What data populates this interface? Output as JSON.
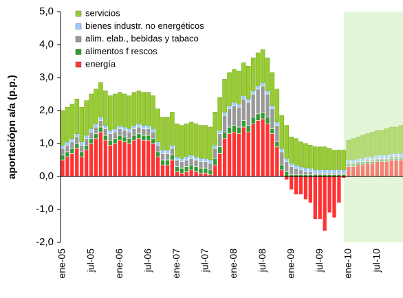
{
  "chart_data": {
    "type": "stacked_bar",
    "ylabel": "aportaciópn a/a (p.p.)",
    "categories": [
      "ene-05",
      null,
      null,
      null,
      null,
      null,
      "jul-05",
      null,
      null,
      null,
      null,
      null,
      "ene-06",
      null,
      null,
      null,
      null,
      null,
      "jul-06",
      null,
      null,
      null,
      null,
      null,
      "ene-07",
      null,
      null,
      null,
      null,
      null,
      "jul-07",
      null,
      null,
      null,
      null,
      null,
      "ene-08",
      null,
      null,
      null,
      null,
      null,
      "jul-08",
      null,
      null,
      null,
      null,
      null,
      "ene-09",
      null,
      null,
      null,
      null,
      null,
      "jul-09",
      null,
      null,
      null,
      null,
      null,
      "ene-10",
      null,
      null,
      null,
      null,
      null,
      "jul-10",
      null,
      null,
      null,
      null,
      null
    ],
    "ylim": [
      -2,
      5
    ],
    "yticks": [
      {
        "value": -2,
        "label": "-2,0"
      },
      {
        "value": -1,
        "label": "-1,0"
      },
      {
        "value": 0,
        "label": "0,0"
      },
      {
        "value": 1,
        "label": "1,0"
      },
      {
        "value": 2,
        "label": "2,0"
      },
      {
        "value": 3,
        "label": "3,0"
      },
      {
        "value": 4,
        "label": "4,0"
      },
      {
        "value": 5,
        "label": "5,0"
      }
    ],
    "series": [
      {
        "name": "energía",
        "color": "#ff3333",
        "values": [
          0.5,
          0.6,
          0.7,
          0.85,
          0.6,
          0.8,
          1.0,
          1.15,
          1.35,
          1.1,
          0.95,
          1.0,
          1.1,
          1.05,
          1.0,
          1.1,
          1.15,
          1.1,
          1.1,
          1.0,
          0.6,
          0.35,
          0.35,
          0.5,
          0.15,
          0.1,
          0.15,
          0.2,
          0.15,
          0.1,
          0.1,
          0.05,
          0.35,
          0.7,
          1.15,
          1.3,
          1.35,
          1.3,
          1.5,
          1.35,
          1.6,
          1.7,
          1.75,
          1.6,
          1.3,
          0.9,
          0.2,
          -0.1,
          -0.4,
          -0.55,
          -0.55,
          -0.7,
          -0.8,
          -1.3,
          -1.3,
          -1.65,
          -1.1,
          -1.25,
          -0.8,
          -0.05,
          0.3,
          0.3,
          0.35,
          0.35,
          0.4,
          0.4,
          0.45,
          0.45,
          0.45,
          0.5,
          0.5,
          0.5
        ]
      },
      {
        "name": "alimentos f rescos",
        "color": "#339933",
        "values": [
          0.15,
          0.15,
          0.15,
          0.15,
          0.15,
          0.15,
          0.15,
          0.15,
          0.15,
          0.15,
          0.15,
          0.15,
          0.15,
          0.15,
          0.15,
          0.15,
          0.15,
          0.15,
          0.15,
          0.15,
          0.15,
          0.15,
          0.15,
          0.15,
          0.15,
          0.15,
          0.15,
          0.15,
          0.15,
          0.15,
          0.15,
          0.15,
          0.2,
          0.2,
          0.2,
          0.2,
          0.2,
          0.2,
          0.2,
          0.2,
          0.2,
          0.2,
          0.2,
          0.2,
          0.15,
          0.15,
          0.15,
          0.15,
          0.05,
          0.05,
          0.05,
          0.05,
          0.05,
          0.05,
          0.05,
          0.05,
          0.05,
          0.05,
          0.05,
          0.05,
          0.05,
          0.05,
          0.05,
          0.05,
          0.05,
          0.05,
          0.05,
          0.05,
          0.05,
          0.05,
          0.05,
          0.05
        ]
      },
      {
        "name": "alim. elab., bebidas y tabaco",
        "color": "#999999",
        "values": [
          0.2,
          0.2,
          0.2,
          0.2,
          0.2,
          0.2,
          0.2,
          0.2,
          0.2,
          0.2,
          0.2,
          0.2,
          0.2,
          0.2,
          0.2,
          0.2,
          0.2,
          0.2,
          0.2,
          0.2,
          0.2,
          0.2,
          0.2,
          0.2,
          0.2,
          0.2,
          0.2,
          0.2,
          0.2,
          0.2,
          0.2,
          0.2,
          0.3,
          0.4,
          0.5,
          0.55,
          0.6,
          0.6,
          0.65,
          0.7,
          0.7,
          0.75,
          0.8,
          0.7,
          0.6,
          0.5,
          0.4,
          0.3,
          0.25,
          0.2,
          0.15,
          0.1,
          0.1,
          0.05,
          0.05,
          0.05,
          0.05,
          0.05,
          0.05,
          0.05,
          0.05,
          0.05,
          0.05,
          0.05,
          0.05,
          0.05,
          0.05,
          0.05,
          0.05,
          0.05,
          0.05,
          0.05
        ]
      },
      {
        "name": "bienes industr. no energéticos",
        "color": "#99ccff",
        "values": [
          0.1,
          0.1,
          0.1,
          0.1,
          0.1,
          0.1,
          0.1,
          0.1,
          0.1,
          0.1,
          0.1,
          0.1,
          0.1,
          0.1,
          0.1,
          0.1,
          0.1,
          0.1,
          0.1,
          0.1,
          0.1,
          0.1,
          0.1,
          0.1,
          0.1,
          0.1,
          0.1,
          0.1,
          0.1,
          0.1,
          0.1,
          0.1,
          0.1,
          0.1,
          0.1,
          0.1,
          0.1,
          0.1,
          0.1,
          0.1,
          0.1,
          0.1,
          0.1,
          0.1,
          0.1,
          0.1,
          0.1,
          0.1,
          0.1,
          0.1,
          0.1,
          0.1,
          0.1,
          0.1,
          0.1,
          0.1,
          0.1,
          0.1,
          0.1,
          0.1,
          0.1,
          0.1,
          0.1,
          0.1,
          0.1,
          0.1,
          0.1,
          0.1,
          0.1,
          0.1,
          0.1,
          0.1
        ]
      },
      {
        "name": "servicios",
        "color": "#99cc33",
        "values": [
          1.05,
          1.05,
          1.05,
          1.05,
          1.05,
          1.05,
          1.05,
          1.05,
          1.05,
          1.05,
          1.05,
          1.05,
          1.0,
          1.0,
          1.0,
          1.0,
          1.0,
          1.0,
          1.0,
          1.0,
          1.0,
          1.0,
          1.0,
          1.0,
          1.0,
          1.0,
          1.0,
          1.0,
          1.0,
          1.0,
          1.0,
          1.0,
          1.0,
          1.0,
          1.0,
          1.0,
          1.0,
          1.0,
          1.0,
          1.0,
          1.0,
          1.0,
          1.0,
          1.0,
          1.0,
          1.0,
          1.0,
          1.0,
          0.8,
          0.8,
          0.75,
          0.75,
          0.7,
          0.7,
          0.7,
          0.7,
          0.65,
          0.6,
          0.6,
          0.6,
          0.6,
          0.65,
          0.65,
          0.7,
          0.7,
          0.75,
          0.75,
          0.75,
          0.8,
          0.8,
          0.8,
          0.85
        ]
      }
    ]
  }
}
